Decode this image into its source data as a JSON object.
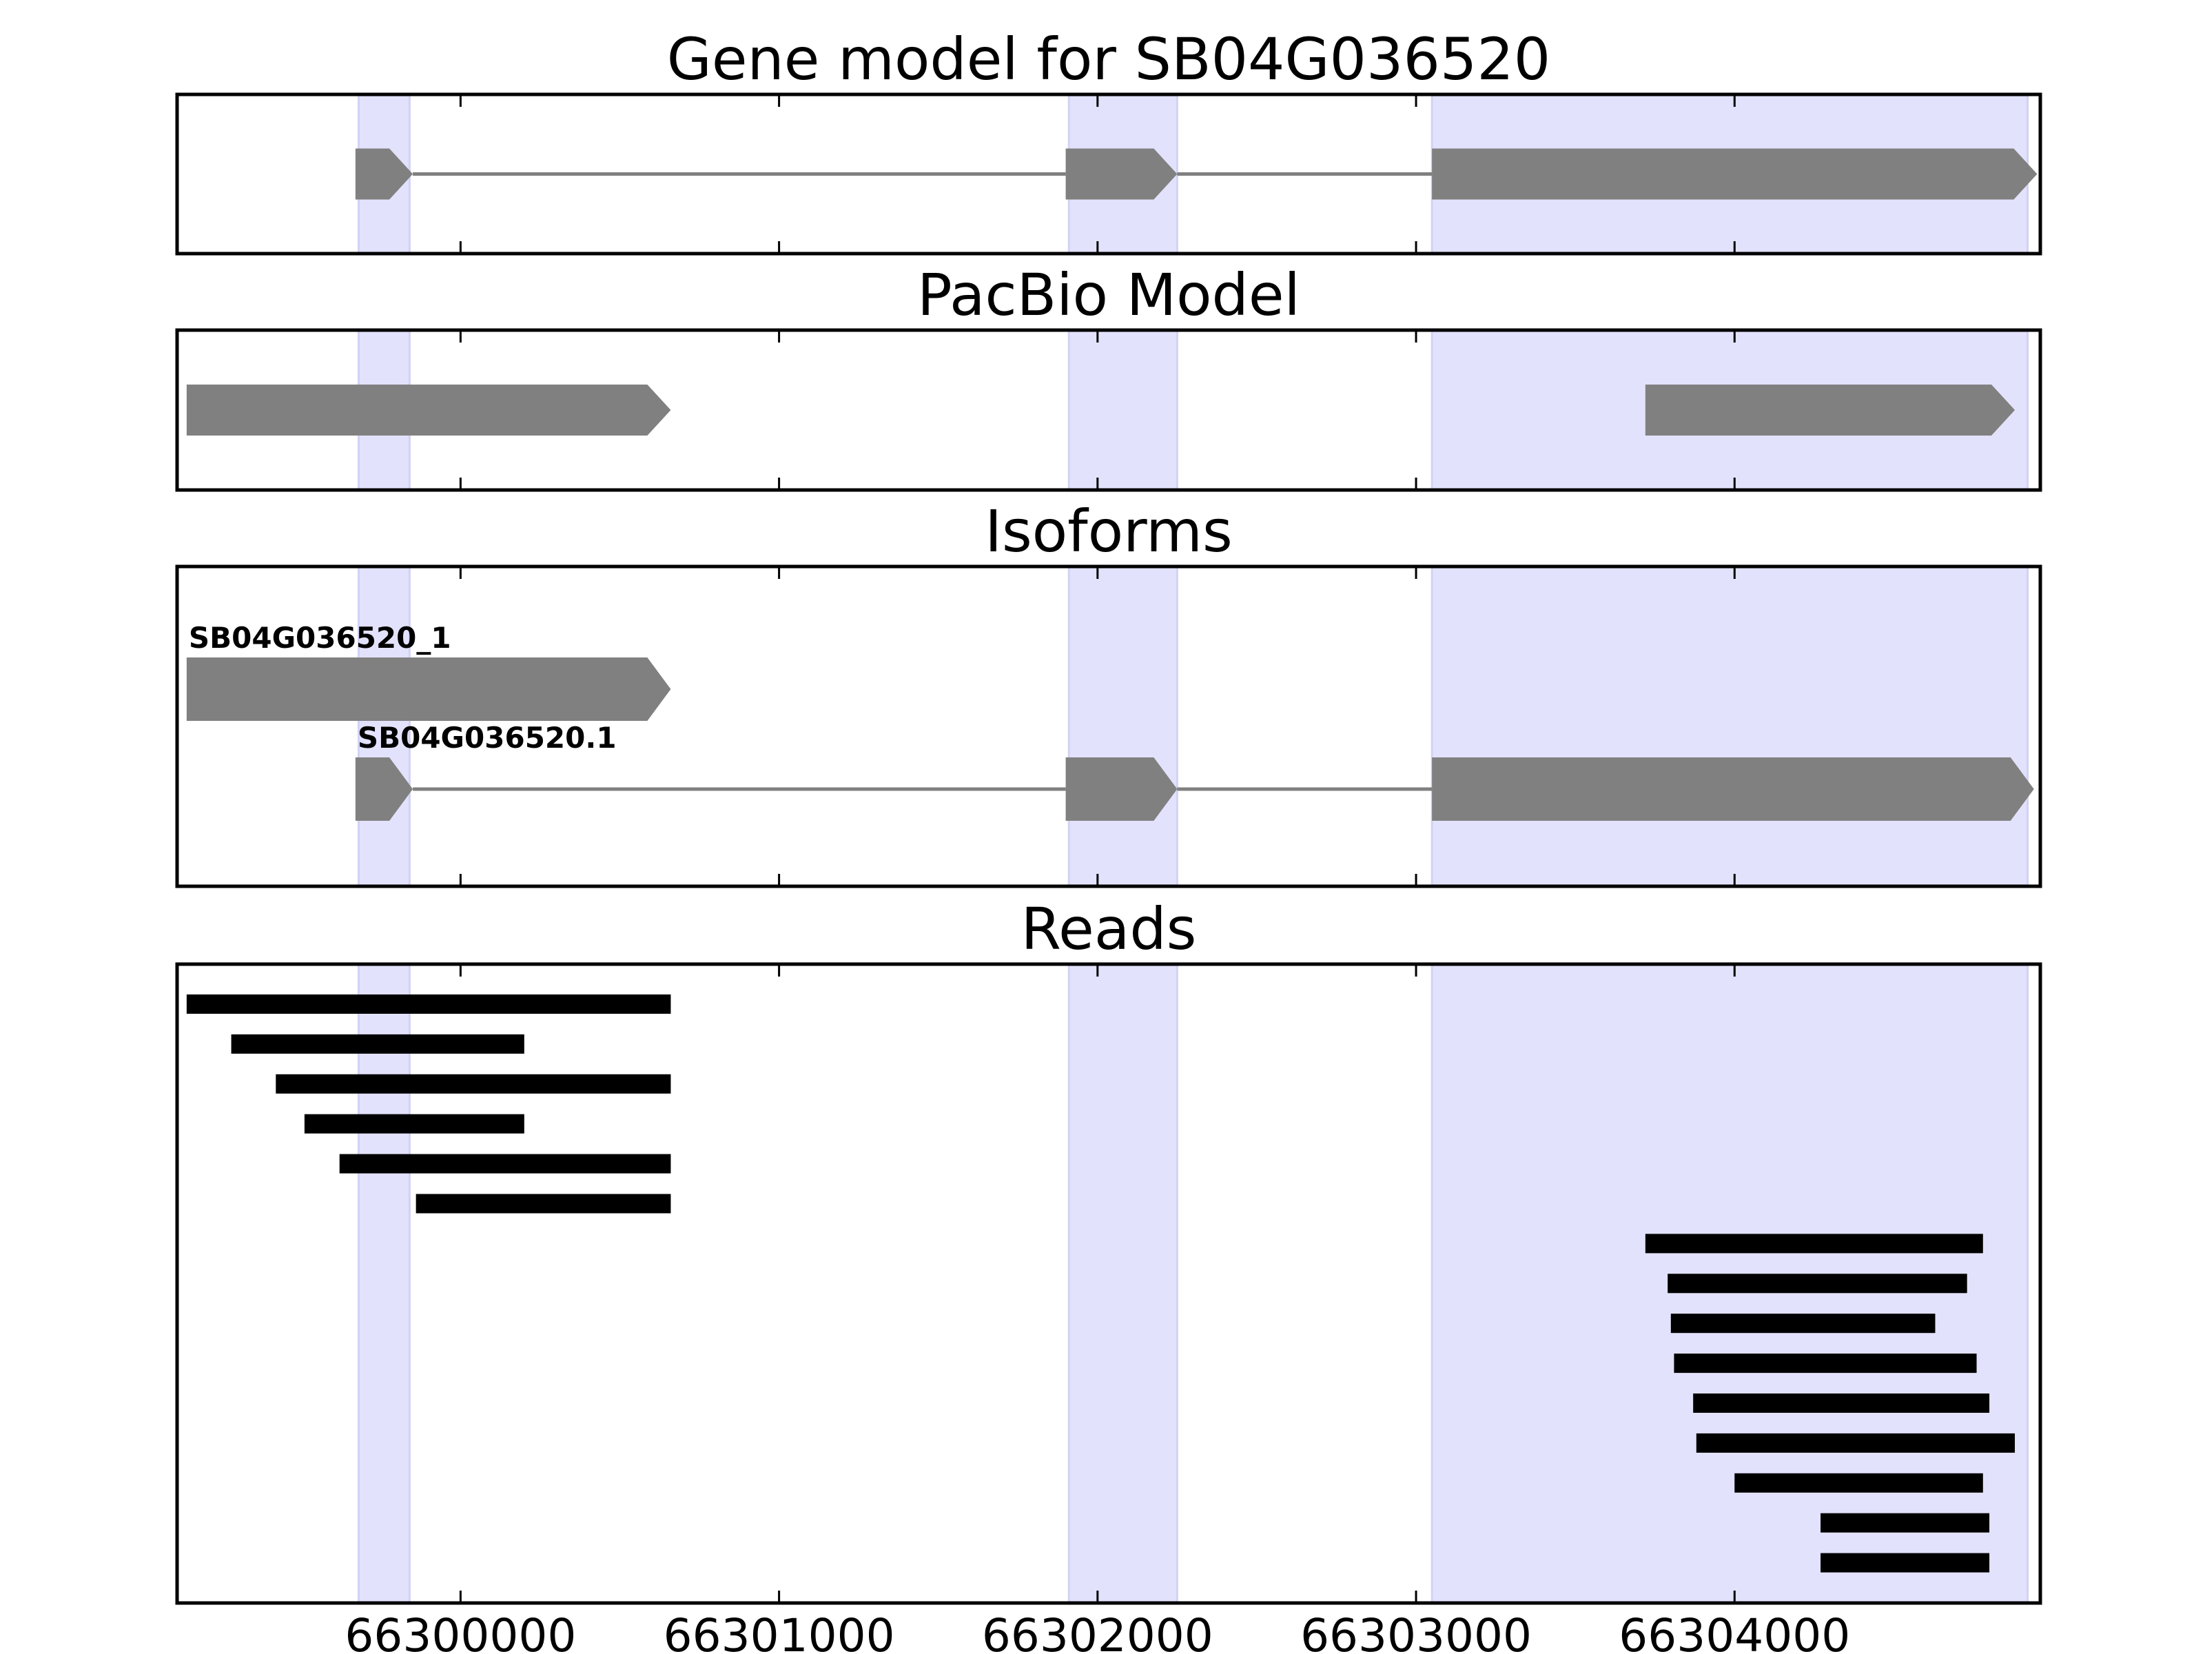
{
  "chart_data": {
    "type": "gene-track",
    "x_axis": {
      "ticks": [
        66300000,
        66301000,
        66302000,
        66303000,
        66304000
      ],
      "tick_labels": [
        "66300000",
        "66301000",
        "66302000",
        "66303000",
        "66304000"
      ],
      "xlim": [
        66299110,
        66304960
      ]
    },
    "highlight_color": "#e2e2fc",
    "feature_color": "#808080",
    "read_color": "#000000",
    "highlight_regions": [
      [
        66299680,
        66299840
      ],
      [
        66301910,
        66302250
      ],
      [
        66303050,
        66304920
      ]
    ],
    "panels": [
      {
        "title": "Gene model for SB04G036520",
        "tracks": [
          {
            "exons": [
              [
                66299670,
                66299850
              ],
              [
                66301900,
                66302250
              ],
              [
                66303050,
                66304950
              ]
            ],
            "strand": "+"
          }
        ]
      },
      {
        "title": "PacBio Model",
        "tracks": [
          {
            "exons": [
              [
                66299140,
                66300660
              ]
            ],
            "strand": "+"
          },
          {
            "exons": [
              [
                66303720,
                66304880
              ]
            ],
            "strand": "+"
          }
        ]
      },
      {
        "title": "Isoforms",
        "tracks": [
          {
            "label": "SB04G036520_1",
            "exons": [
              [
                66299140,
                66300660
              ]
            ],
            "strand": "+"
          },
          {
            "label": "SB04G036520.1",
            "exons": [
              [
                66299670,
                66299850
              ],
              [
                66301900,
                66302250
              ],
              [
                66303050,
                66304940
              ]
            ],
            "strand": "+"
          }
        ]
      },
      {
        "title": "Reads",
        "reads": [
          [
            66299140,
            66300660
          ],
          [
            66299280,
            66300200
          ],
          [
            66299420,
            66300660
          ],
          [
            66299510,
            66300200
          ],
          [
            66299620,
            66300660
          ],
          [
            66299860,
            66300660
          ],
          [
            66303720,
            66304780
          ],
          [
            66303790,
            66304730
          ],
          [
            66303800,
            66304630
          ],
          [
            66303810,
            66304760
          ],
          [
            66303870,
            66304800
          ],
          [
            66303880,
            66304880
          ],
          [
            66304000,
            66304780
          ],
          [
            66304270,
            66304800
          ],
          [
            66304270,
            66304800
          ]
        ]
      }
    ]
  }
}
